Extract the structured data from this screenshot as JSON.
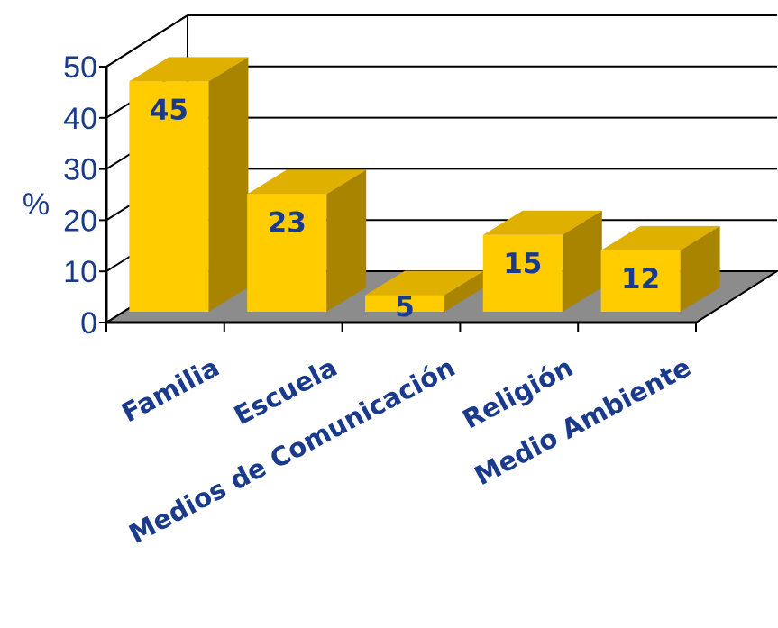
{
  "chart_data": {
    "type": "bar",
    "categories": [
      "Familia",
      "Escuela",
      "Medios de Comunicación",
      "Religión",
      "Medio Ambiente"
    ],
    "values": [
      45,
      23,
      5,
      15,
      12
    ],
    "title": "",
    "xlabel": "",
    "ylabel": "%",
    "ylim": [
      0,
      50
    ],
    "yticks": [
      0,
      10,
      20,
      30,
      40,
      50
    ],
    "grid": true,
    "legend": "none",
    "three_d": true,
    "colors": {
      "bar_front": "#ffcc00",
      "bar_top": "#e0b000",
      "bar_side": "#a88400",
      "floor": "#8c8c8c",
      "text": "#1a3a8c",
      "grid": "#000000"
    }
  }
}
